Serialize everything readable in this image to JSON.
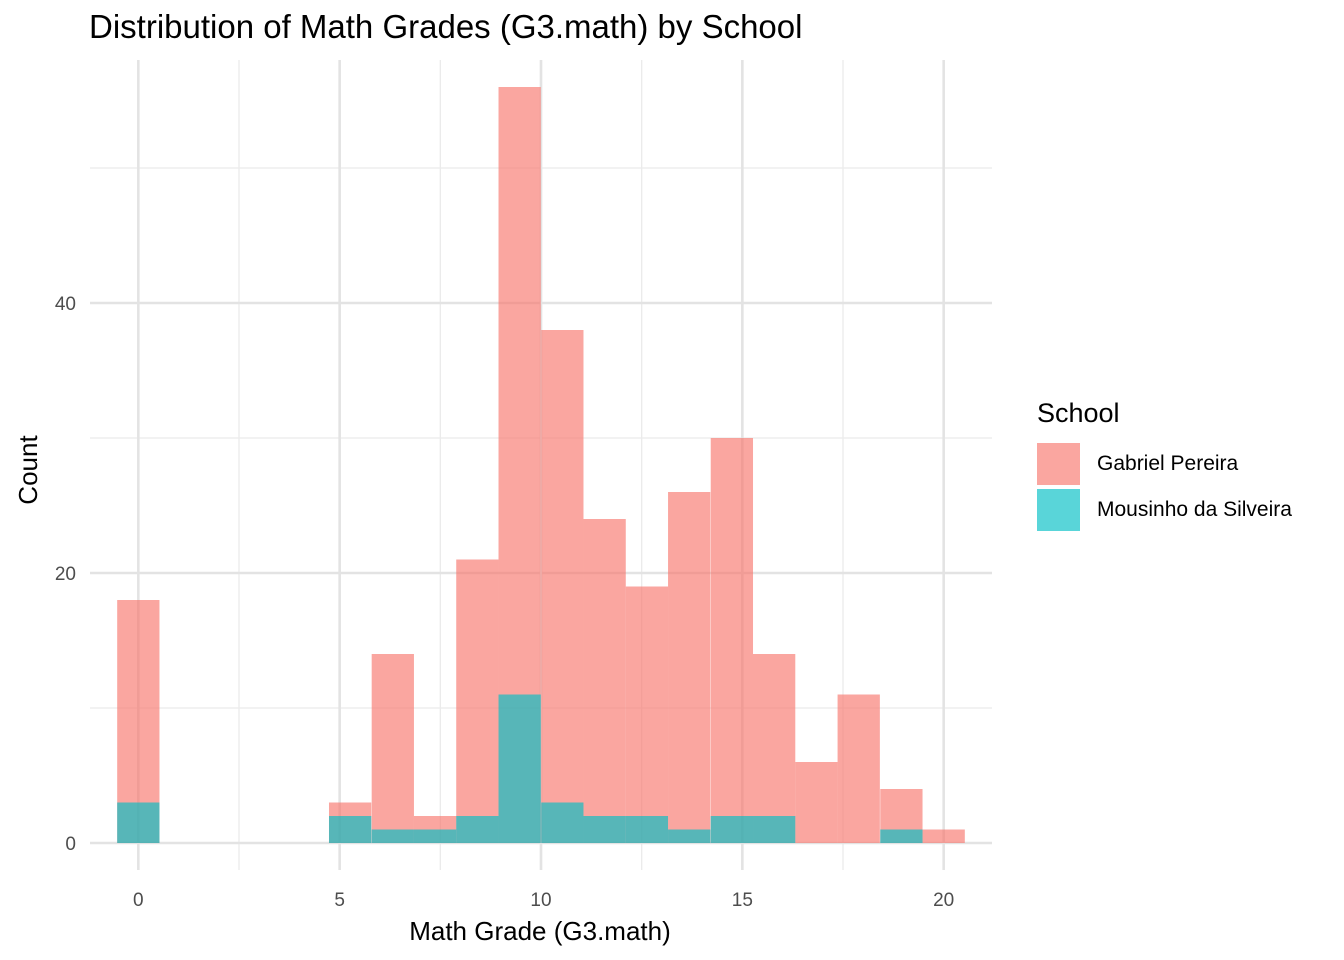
{
  "chart_data": {
    "type": "bar",
    "title": "Distribution of Math Grades (G3.math) by School",
    "xlabel": "Math Grade (G3.math)",
    "ylabel": "Count",
    "xlim": [
      -1.2,
      21.2
    ],
    "ylim": [
      -2,
      58
    ],
    "x_ticks": [
      0,
      5,
      10,
      15,
      20
    ],
    "y_ticks": [
      0,
      20,
      40
    ],
    "grid": true,
    "bin_width": 1.05,
    "legend": {
      "title": "School",
      "position": "right"
    },
    "bins": [
      0,
      5.26,
      6.32,
      7.37,
      8.42,
      9.47,
      10.53,
      11.58,
      12.63,
      13.68,
      14.74,
      15.79,
      16.84,
      17.89,
      18.95,
      20
    ],
    "series": [
      {
        "name": "Gabriel Pereira",
        "color": "#F8766D",
        "values": [
          18,
          3,
          14,
          2,
          21,
          56,
          38,
          24,
          19,
          26,
          30,
          14,
          6,
          11,
          4,
          1
        ]
      },
      {
        "name": "Mousinho da Silveira",
        "color": "#00BFC4",
        "values": [
          3,
          2,
          1,
          1,
          2,
          11,
          3,
          2,
          2,
          1,
          2,
          2,
          0,
          0,
          1,
          0
        ]
      }
    ]
  }
}
